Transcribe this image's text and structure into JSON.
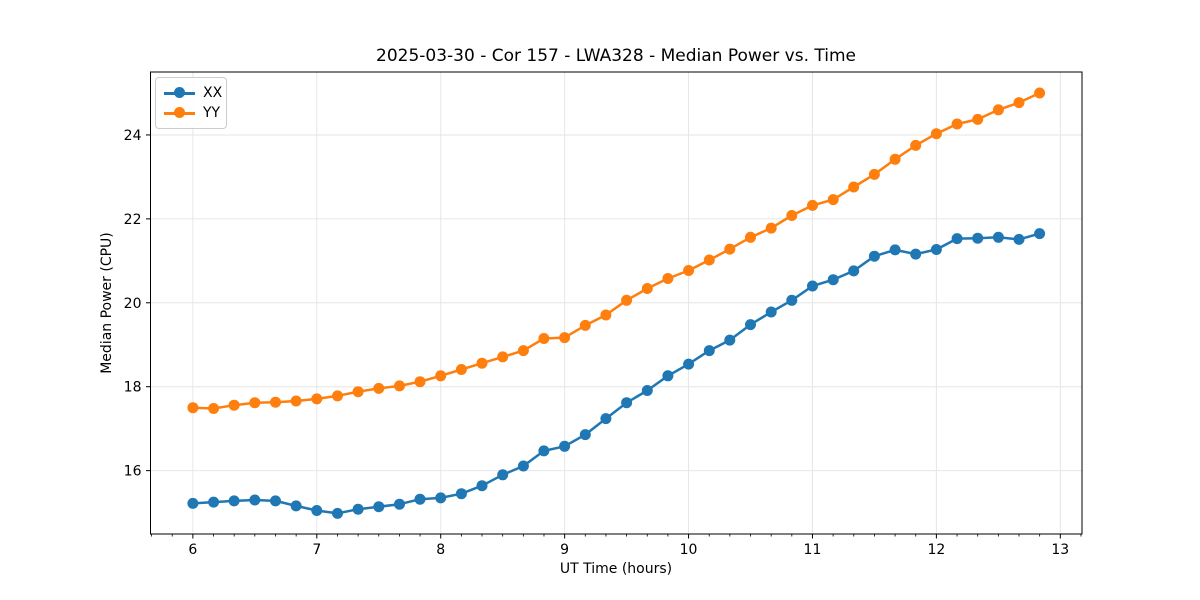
{
  "chart_data": {
    "type": "line",
    "title": "2025-03-30 - Cor 157 - LWA328 - Median Power vs. Time",
    "xlabel": "UT Time (hours)",
    "ylabel": "Median Power (CPU)",
    "xlim": [
      5.658,
      13.175
    ],
    "ylim": [
      14.49,
      25.5
    ],
    "xticks": [
      6,
      7,
      8,
      9,
      10,
      11,
      12,
      13
    ],
    "yticks": [
      16,
      18,
      20,
      22,
      24
    ],
    "x_minor_tick_step": 0.1667,
    "grid": "major",
    "grid_color": "#e6e6e6",
    "legend_position": "upper-left",
    "x": [
      6,
      6.167,
      6.333,
      6.5,
      6.667,
      6.833,
      7,
      7.167,
      7.333,
      7.5,
      7.667,
      7.833,
      8,
      8.167,
      8.333,
      8.5,
      8.667,
      8.833,
      9,
      9.167,
      9.333,
      9.5,
      9.667,
      9.833,
      10,
      10.167,
      10.333,
      10.5,
      10.667,
      10.833,
      11,
      11.167,
      11.333,
      11.5,
      11.667,
      11.833,
      12,
      12.167,
      12.333,
      12.5,
      12.667,
      12.833
    ],
    "series": [
      {
        "name": "XX",
        "color": "#1f77b4",
        "values": [
          15.22,
          15.25,
          15.28,
          15.3,
          15.28,
          15.16,
          15.05,
          14.98,
          15.08,
          15.14,
          15.2,
          15.32,
          15.35,
          15.45,
          15.64,
          15.9,
          16.11,
          16.47,
          16.58,
          16.86,
          17.24,
          17.62,
          17.91,
          18.26,
          18.54,
          18.86,
          19.11,
          19.48,
          19.78,
          20.06,
          20.4,
          20.55,
          20.76,
          21.11,
          21.26,
          21.16,
          21.27,
          21.53,
          21.54,
          21.56,
          21.51,
          21.65
        ]
      },
      {
        "name": "YY",
        "color": "#ff7f0e",
        "values": [
          17.5,
          17.48,
          17.56,
          17.62,
          17.63,
          17.66,
          17.71,
          17.78,
          17.88,
          17.96,
          18.02,
          18.12,
          18.26,
          18.41,
          18.56,
          18.71,
          18.86,
          19.15,
          19.17,
          19.46,
          19.71,
          20.06,
          20.34,
          20.58,
          20.77,
          21.02,
          21.28,
          21.56,
          21.78,
          22.08,
          22.32,
          22.46,
          22.76,
          23.06,
          23.42,
          23.75,
          24.03,
          24.26,
          24.37,
          24.6,
          24.77,
          25.0
        ]
      }
    ]
  }
}
